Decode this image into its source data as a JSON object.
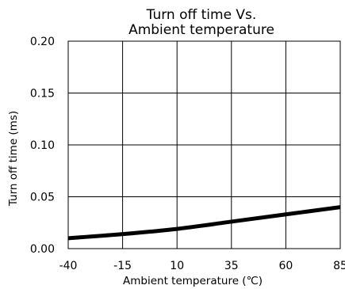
{
  "chart_data": {
    "type": "line",
    "title_lines": [
      "Turn off time Vs.",
      "Ambient temperature"
    ],
    "xlabel": "Ambient temperature (℃)",
    "ylabel": "Turn off time  (ms)",
    "xlim": [
      -40,
      85
    ],
    "ylim": [
      0,
      0.2
    ],
    "x_ticks": [
      -40,
      -15,
      10,
      35,
      60,
      85
    ],
    "y_ticks": [
      0.0,
      0.05,
      0.1,
      0.15,
      0.2
    ],
    "x_tick_labels": [
      "-40",
      "-15",
      "10",
      "35",
      "60",
      "85"
    ],
    "y_tick_labels": [
      "0.00",
      "0.05",
      "0.10",
      "0.15",
      "0.20"
    ],
    "grid": true,
    "series": [
      {
        "x": [
          -40,
          -15,
          10,
          35,
          60,
          85
        ],
        "y": [
          0.01,
          0.014,
          0.019,
          0.026,
          0.033,
          0.04
        ]
      }
    ],
    "line_color": "#000000"
  }
}
